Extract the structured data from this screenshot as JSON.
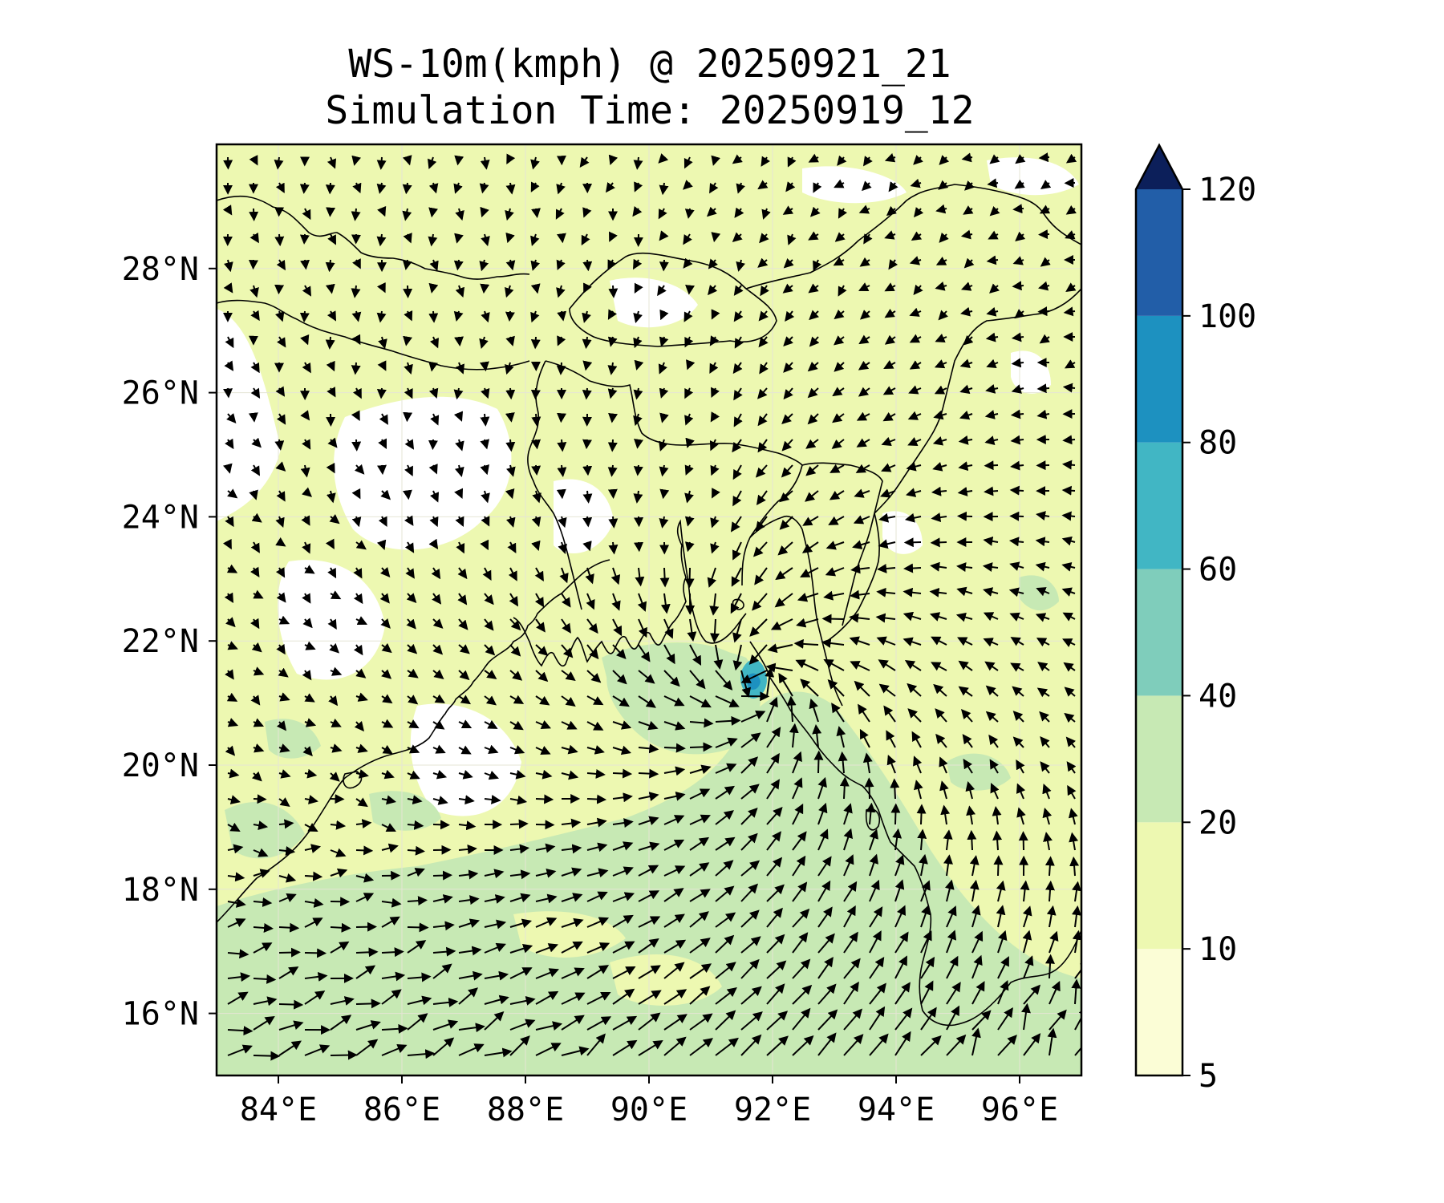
{
  "title": {
    "line1": "WS-10m(kmph) @ 20250921_21",
    "line2": "Simulation Time: 20250919_12"
  },
  "map": {
    "lon_range": [
      83,
      97
    ],
    "lat_range": [
      15,
      30
    ],
    "lon_ticks": [
      "84°E",
      "86°E",
      "88°E",
      "90°E",
      "92°E",
      "94°E",
      "96°E"
    ],
    "lat_ticks": [
      "16°N",
      "18°N",
      "20°N",
      "22°N",
      "24°N",
      "26°N",
      "28°N"
    ],
    "lon_values": [
      84,
      86,
      88,
      90,
      92,
      94,
      96
    ],
    "lat_values": [
      16,
      18,
      20,
      22,
      24,
      26,
      28
    ]
  },
  "colorbar": {
    "levels": [
      "5",
      "10",
      "20",
      "40",
      "60",
      "80",
      "100",
      "120"
    ],
    "colors": [
      "#fbfdd6",
      "#edf8b1",
      "#c7e9b4",
      "#7fcdbb",
      "#41b6c4",
      "#1d91c0",
      "#225ea8",
      "#253494"
    ],
    "extend_color": "#0c1f5a",
    "extend": "max"
  },
  "wind_field": {
    "center_lon": 91.8,
    "center_lat": 21.3,
    "background_color": "#edf8b1",
    "land_low_wind_color": "#ffffff",
    "sea_band_color": "#c7e9b4",
    "core_color": "#41b6c4"
  }
}
